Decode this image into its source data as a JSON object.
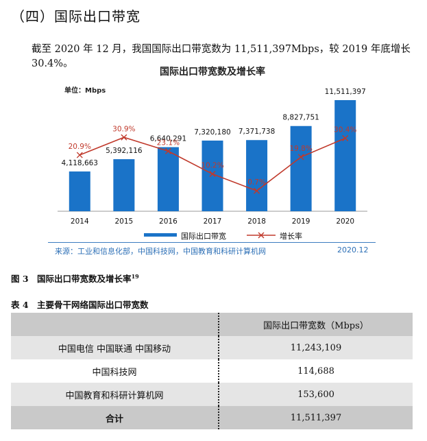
{
  "heading": "（四）国际出口带宽",
  "paragraph": "截至 2020 年 12 月，我国国际出口带宽数为 11,511,397Mbps，较 2019 年底增长 30.4%。",
  "figure": {
    "title": "国际出口带宽数及增长率",
    "unit": "单位：Mbps",
    "source": "来源：工业和信息化部，中国科技网，中国教育和科研计算机网",
    "date": "2020.12",
    "caption": "图 3　国际出口带宽数及增长率",
    "caption_ref": "19"
  },
  "chart_data": {
    "type": "bar",
    "title": "国际出口带宽数及增长率",
    "categories": [
      "2014",
      "2015",
      "2016",
      "2017",
      "2018",
      "2019",
      "2020"
    ],
    "series": [
      {
        "name": "国际出口带宽",
        "type": "bar",
        "color": "#1a73c8",
        "values": [
          4118663,
          5392116,
          6640291,
          7320180,
          7371738,
          8827751,
          11511397
        ],
        "labels": [
          "4,118,663",
          "5,392,116",
          "6,640,291",
          "7,320,180",
          "7,371,738",
          "8,827,751",
          "11,511,397"
        ]
      },
      {
        "name": "增长率",
        "type": "line",
        "color": "#c0392b",
        "values": [
          20.9,
          30.9,
          23.1,
          10.2,
          0.7,
          19.8,
          30.4
        ],
        "labels": [
          "20.9%",
          "30.9%",
          "23.1%",
          "10.2%",
          "0.7%",
          "19.8%",
          "30.4%"
        ]
      }
    ],
    "legend_position": "bottom"
  },
  "table": {
    "caption": "表 4　主要骨干网络国际出口带宽数",
    "header": [
      "",
      "国际出口带宽数（Mbps）"
    ],
    "rows": [
      {
        "name": "中国电信 中国联通 中国移动",
        "value": "11,243,109"
      },
      {
        "name": "中国科技网",
        "value": "114,688"
      },
      {
        "name": "中国教育和科研计算机网",
        "value": "153,600"
      }
    ],
    "total": {
      "name": "合计",
      "value": "11,511,397"
    }
  }
}
